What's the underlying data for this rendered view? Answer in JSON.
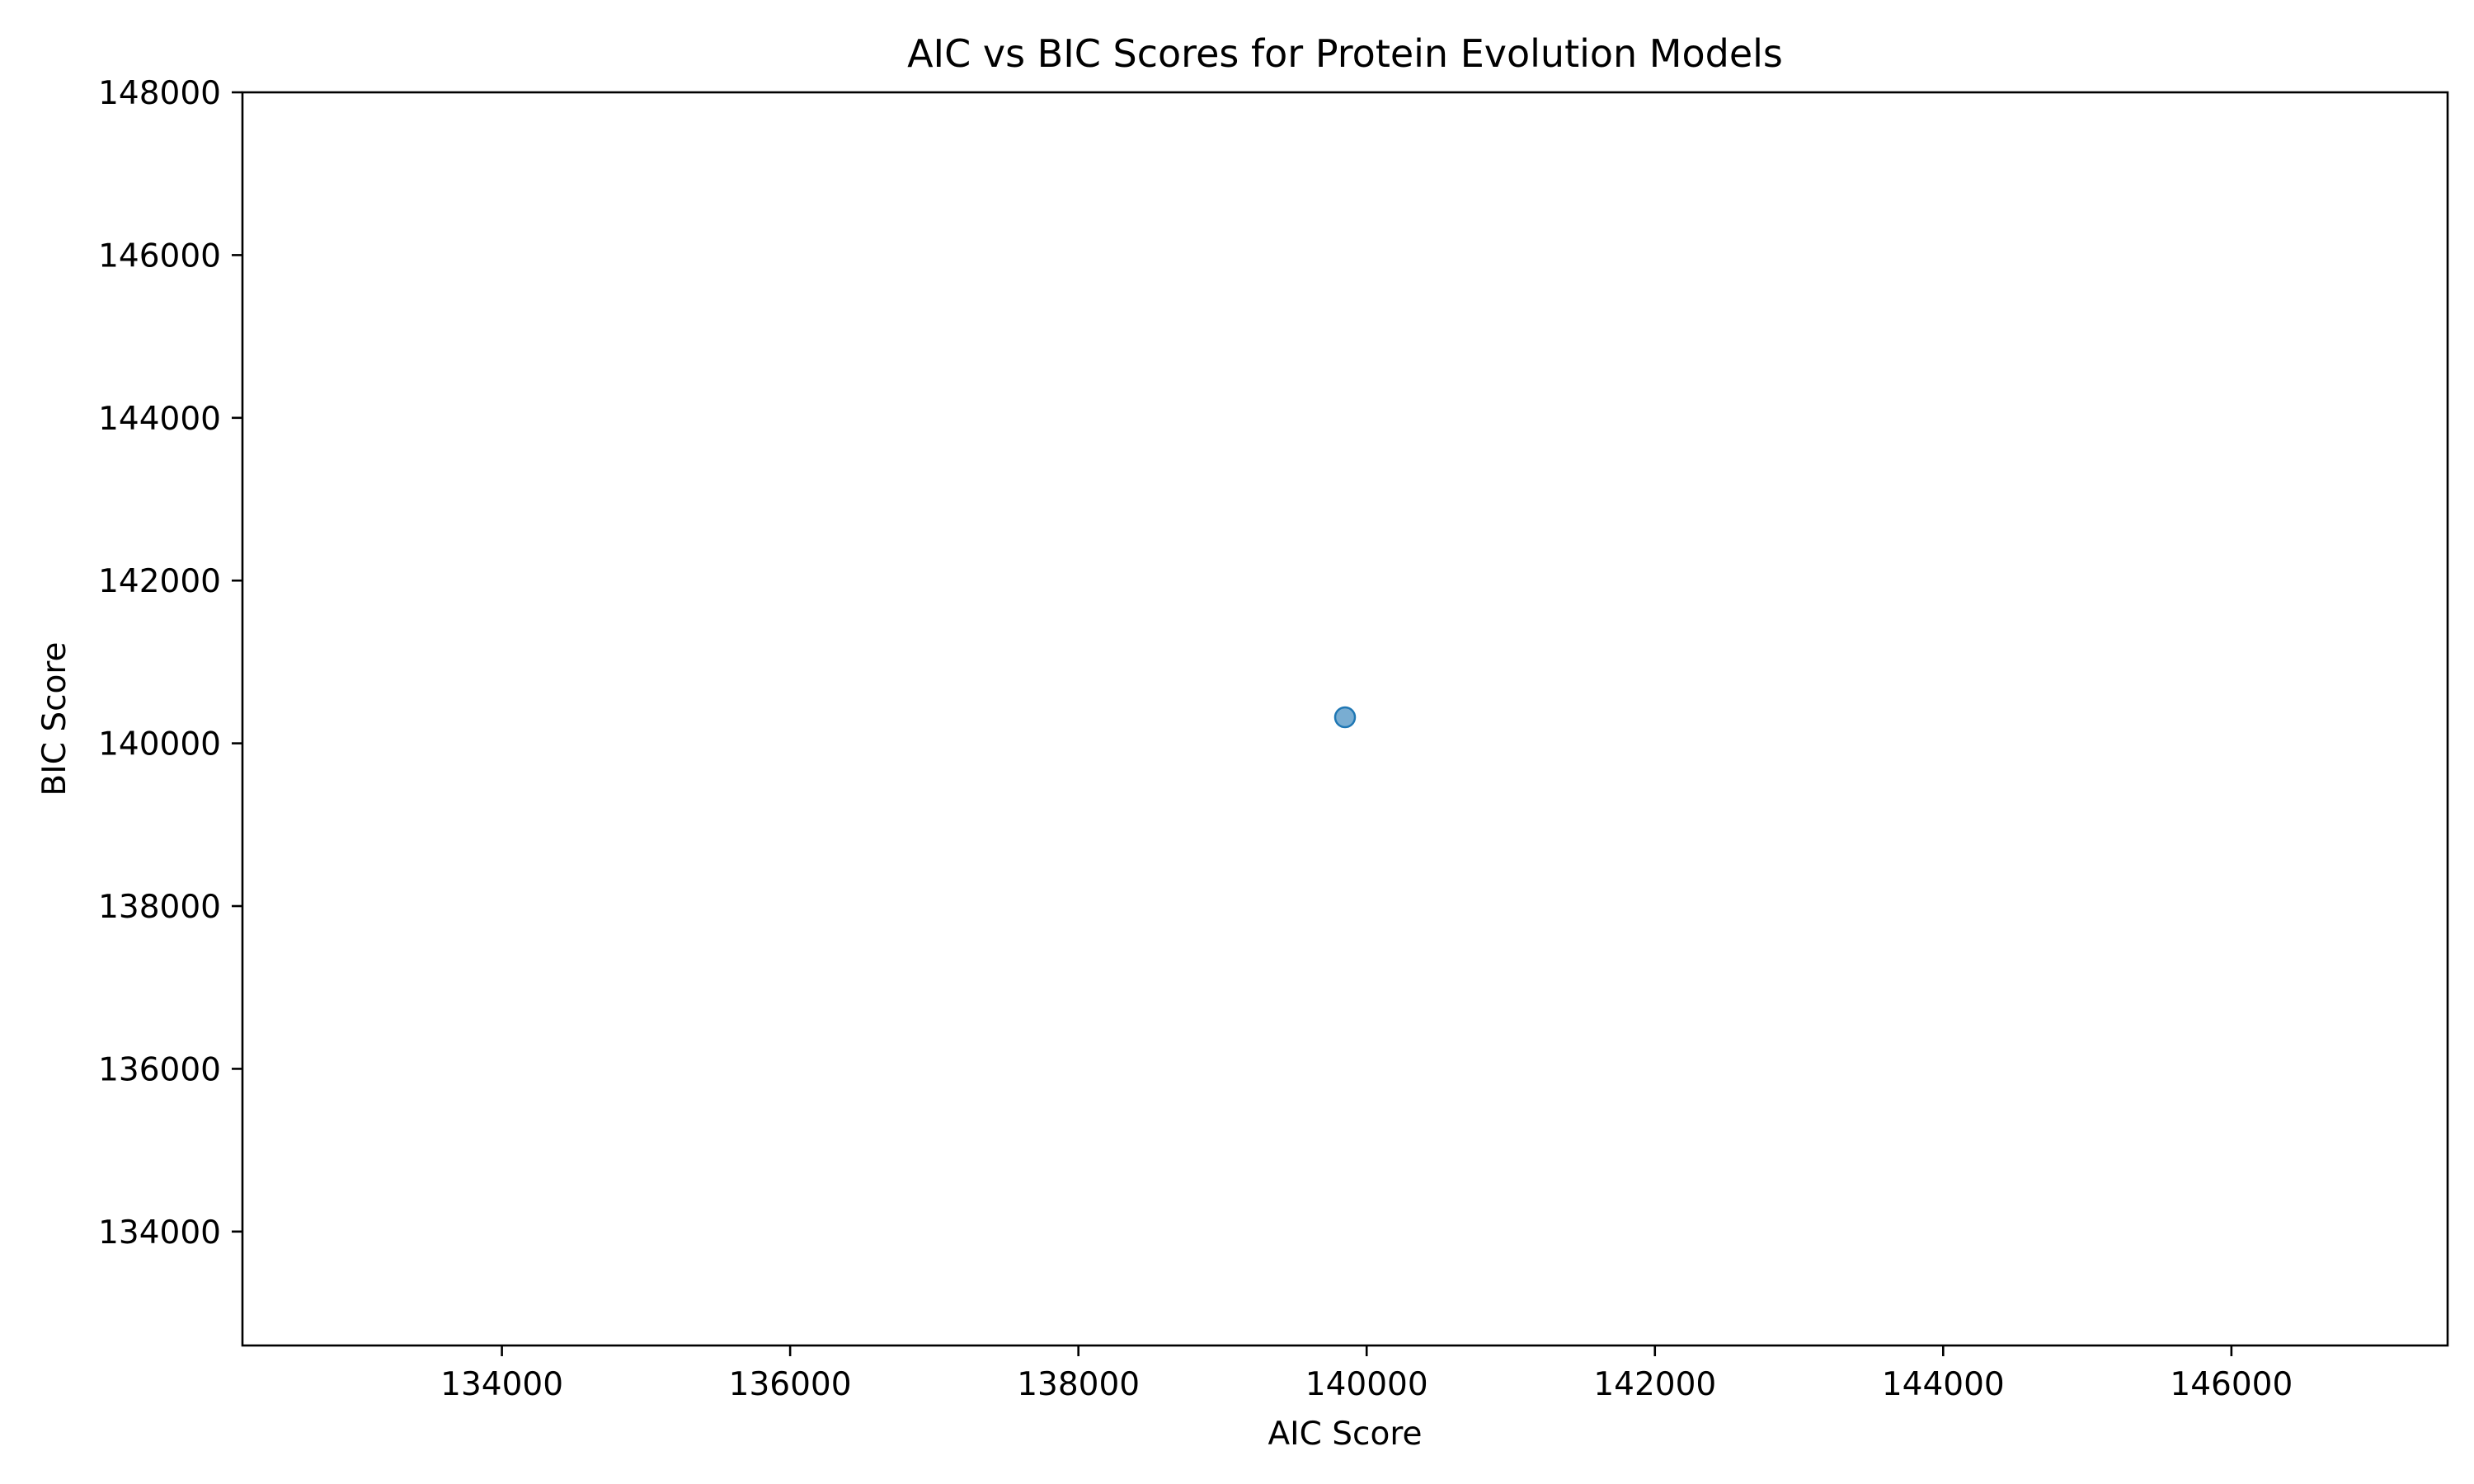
{
  "chart_data": {
    "type": "scatter",
    "title": "AIC vs BIC Scores for Protein Evolution Models",
    "xlabel": "AIC Score",
    "ylabel": "BIC Score",
    "xlim": [
      132200,
      147500
    ],
    "ylim": [
      132600,
      148000
    ],
    "xticks": [
      134000,
      136000,
      138000,
      140000,
      142000,
      144000,
      146000
    ],
    "xtick_labels": [
      "134000",
      "136000",
      "138000",
      "140000",
      "142000",
      "144000",
      "146000"
    ],
    "yticks": [
      134000,
      136000,
      138000,
      140000,
      142000,
      144000,
      146000,
      148000
    ],
    "ytick_labels": [
      "134000",
      "136000",
      "138000",
      "140000",
      "142000",
      "144000",
      "146000",
      "148000"
    ],
    "grid": false,
    "points": [
      {
        "x": 139850,
        "y": 140320
      }
    ],
    "marker_color": "#1f77b4",
    "marker_alpha": 0.6
  }
}
